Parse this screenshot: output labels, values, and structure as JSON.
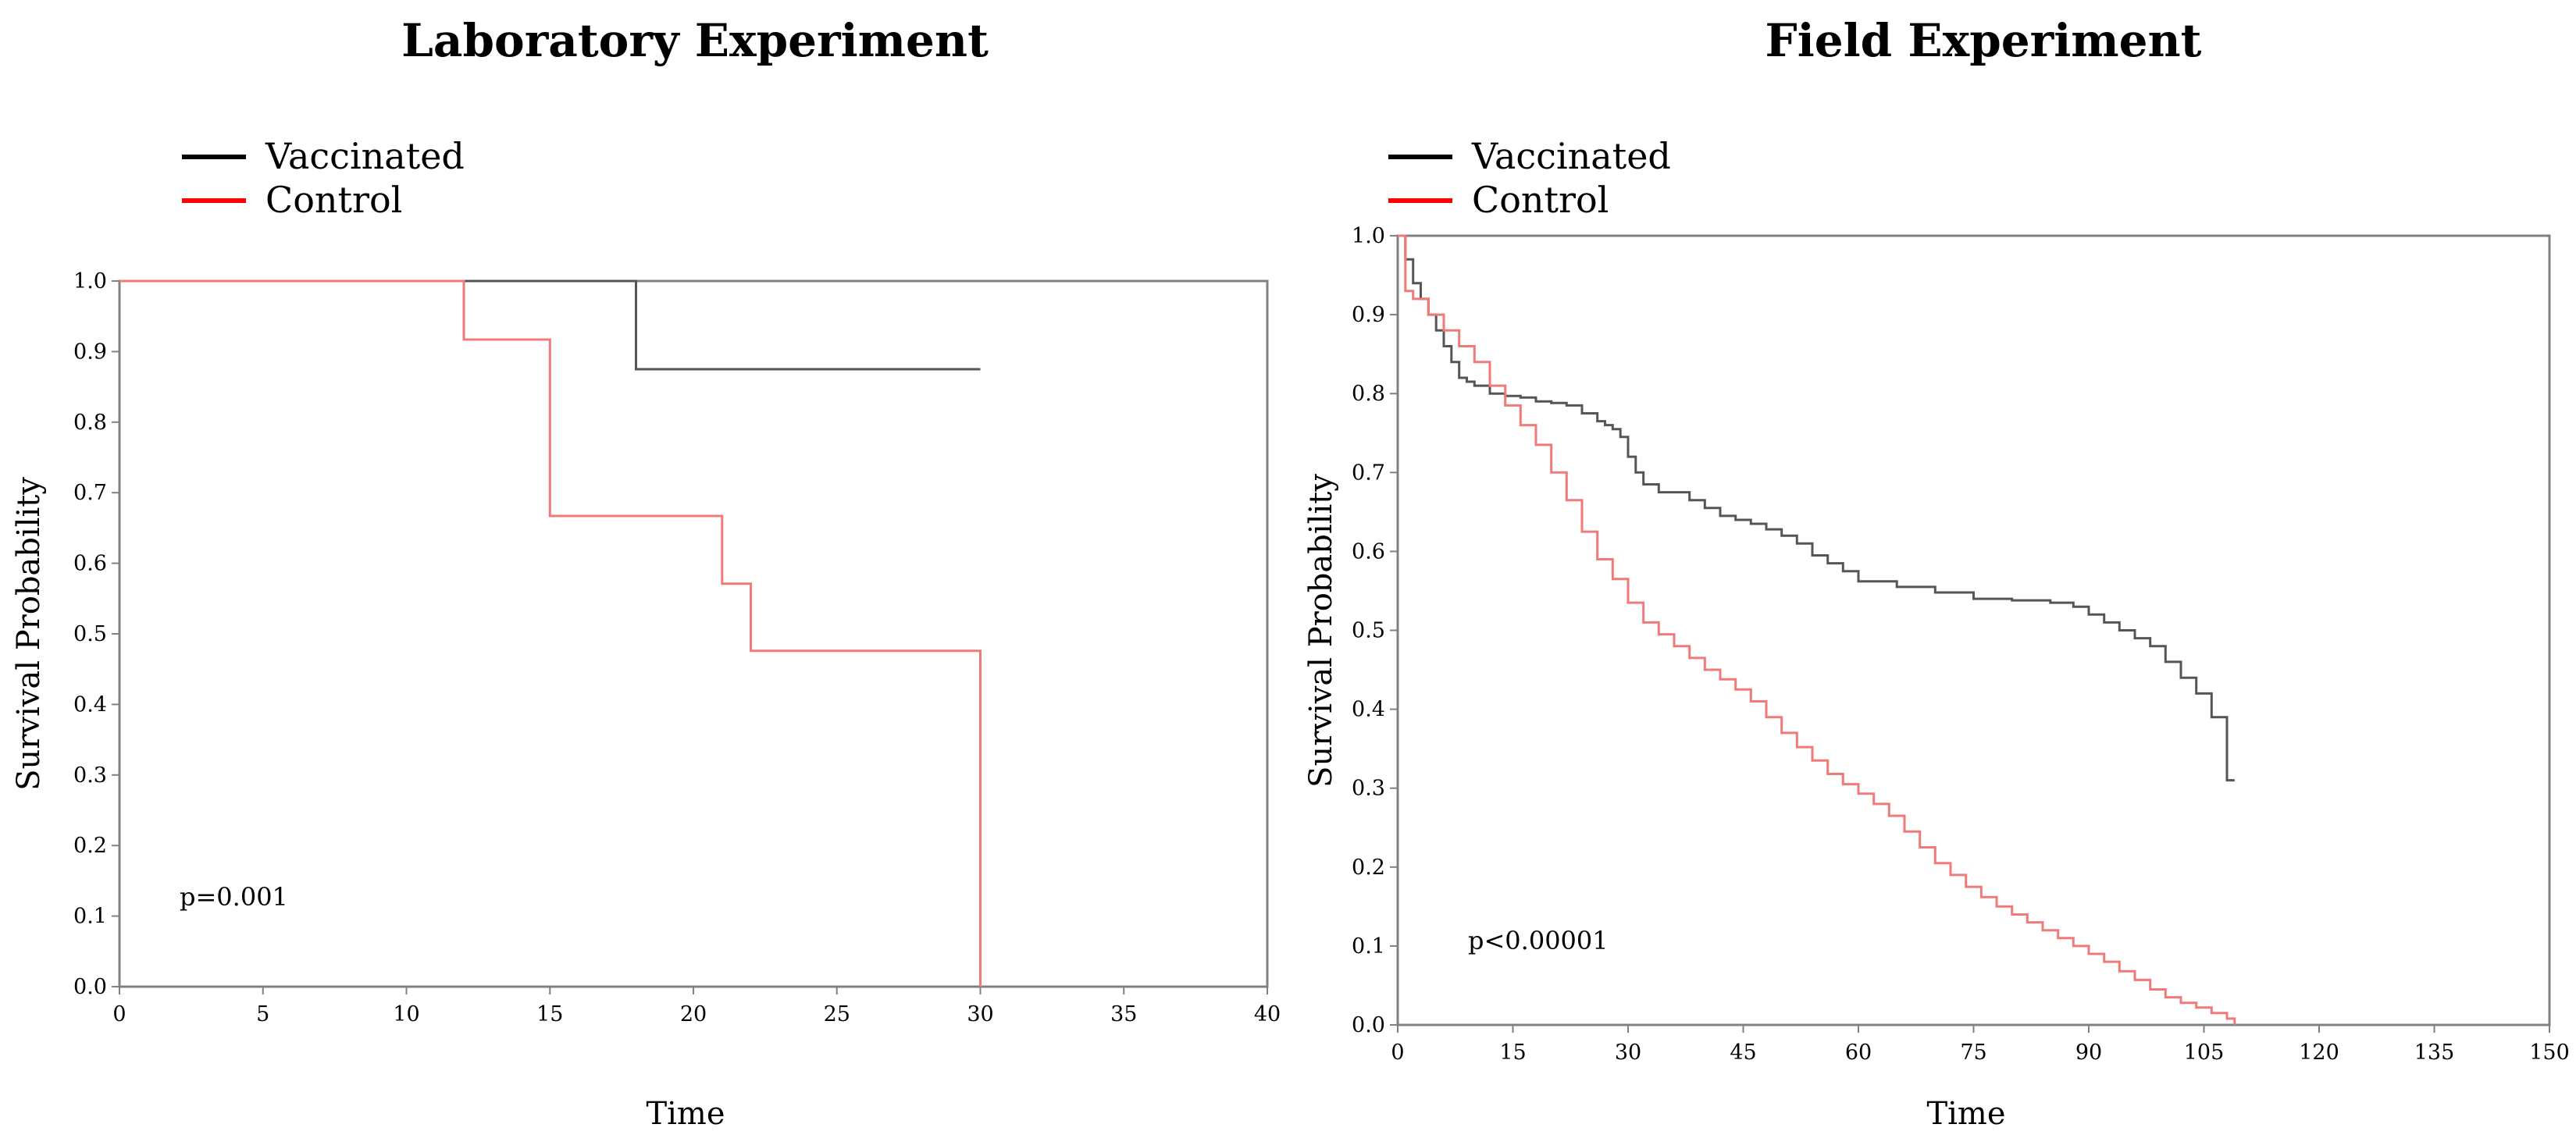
{
  "chart_data": [
    {
      "type": "line",
      "title": "Laboratory Experiment",
      "xlabel": "Time",
      "ylabel": "Survival Probability",
      "xlim": [
        0,
        40
      ],
      "ylim": [
        0,
        1
      ],
      "xticks": [
        "0",
        "5",
        "10",
        "15",
        "20",
        "25",
        "30",
        "35",
        "40"
      ],
      "yticks": [
        "0.0",
        "0.1",
        "0.2",
        "0.3",
        "0.4",
        "0.5",
        "0.6",
        "0.7",
        "0.8",
        "0.9",
        "1.0"
      ],
      "legend": [
        "Vaccinated",
        "Control"
      ],
      "annotation": "p=0.001",
      "series": [
        {
          "name": "Vaccinated",
          "color": "#555555",
          "step": true,
          "x": [
            0,
            18,
            30
          ],
          "y": [
            1.0,
            0.875,
            0.875
          ]
        },
        {
          "name": "Control",
          "color": "#f07a7a",
          "step": true,
          "x": [
            0,
            12,
            15,
            21,
            22,
            30
          ],
          "y": [
            1.0,
            0.917,
            0.667,
            0.571,
            0.476,
            0.0
          ]
        }
      ]
    },
    {
      "type": "line",
      "title": "Field Experiment",
      "xlabel": "Time",
      "ylabel": "Survival Probability",
      "xlim": [
        0,
        150
      ],
      "ylim": [
        0,
        1
      ],
      "xticks": [
        "0",
        "15",
        "30",
        "45",
        "60",
        "75",
        "90",
        "105",
        "120",
        "135",
        "150"
      ],
      "yticks": [
        "0.0",
        "0.1",
        "0.2",
        "0.3",
        "0.4",
        "0.5",
        "0.6",
        "0.7",
        "0.8",
        "0.9",
        "1.0"
      ],
      "legend": [
        "Vaccinated",
        "Control"
      ],
      "annotation": "p<0.00001",
      "series": [
        {
          "name": "Vaccinated",
          "color": "#555555",
          "step": true,
          "x": [
            0,
            1,
            2,
            3,
            4,
            5,
            6,
            7,
            8,
            9,
            10,
            12,
            14,
            16,
            18,
            20,
            22,
            24,
            26,
            27,
            28,
            29,
            30,
            31,
            32,
            34,
            38,
            40,
            42,
            44,
            46,
            48,
            50,
            52,
            54,
            56,
            58,
            60,
            65,
            70,
            75,
            80,
            85,
            88,
            90,
            92,
            94,
            96,
            98,
            100,
            102,
            104,
            106,
            108,
            109
          ],
          "y": [
            1.0,
            0.97,
            0.94,
            0.92,
            0.9,
            0.88,
            0.86,
            0.84,
            0.82,
            0.815,
            0.81,
            0.8,
            0.797,
            0.795,
            0.79,
            0.788,
            0.785,
            0.775,
            0.765,
            0.76,
            0.755,
            0.745,
            0.72,
            0.7,
            0.685,
            0.675,
            0.665,
            0.655,
            0.645,
            0.64,
            0.635,
            0.628,
            0.62,
            0.61,
            0.595,
            0.585,
            0.575,
            0.562,
            0.555,
            0.548,
            0.54,
            0.538,
            0.535,
            0.53,
            0.52,
            0.51,
            0.5,
            0.49,
            0.48,
            0.46,
            0.44,
            0.42,
            0.39,
            0.31,
            0.31
          ]
        },
        {
          "name": "Control",
          "color": "#f07a7a",
          "step": true,
          "x": [
            0,
            1,
            2,
            4,
            6,
            8,
            10,
            12,
            14,
            16,
            18,
            20,
            22,
            24,
            26,
            28,
            30,
            32,
            34,
            36,
            38,
            40,
            42,
            44,
            46,
            48,
            50,
            52,
            54,
            56,
            58,
            60,
            62,
            64,
            66,
            68,
            70,
            72,
            74,
            76,
            78,
            80,
            82,
            84,
            86,
            88,
            90,
            92,
            94,
            96,
            98,
            100,
            102,
            104,
            106,
            108,
            109
          ],
          "y": [
            1.0,
            0.93,
            0.92,
            0.9,
            0.88,
            0.86,
            0.84,
            0.81,
            0.785,
            0.76,
            0.735,
            0.7,
            0.665,
            0.625,
            0.59,
            0.565,
            0.535,
            0.51,
            0.495,
            0.48,
            0.465,
            0.45,
            0.438,
            0.425,
            0.41,
            0.39,
            0.37,
            0.352,
            0.335,
            0.318,
            0.305,
            0.293,
            0.28,
            0.265,
            0.245,
            0.225,
            0.205,
            0.19,
            0.175,
            0.162,
            0.15,
            0.14,
            0.13,
            0.12,
            0.11,
            0.1,
            0.09,
            0.08,
            0.068,
            0.057,
            0.045,
            0.035,
            0.028,
            0.022,
            0.015,
            0.008,
            0.0
          ]
        }
      ]
    }
  ]
}
